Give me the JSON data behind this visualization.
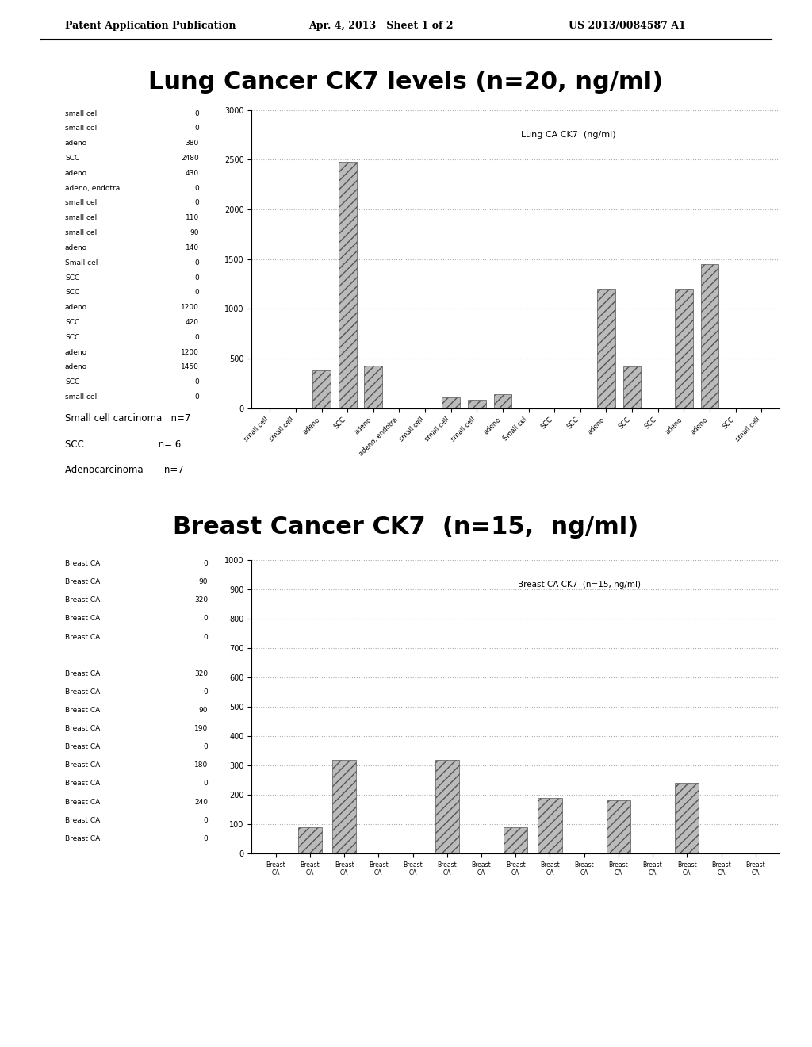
{
  "header_left": "Patent Application Publication",
  "header_mid": "Apr. 4, 2013   Sheet 1 of 2",
  "header_right": "US 2013/0084587 A1",
  "lung_title": "Lung Cancer CK7 levels (n=20, ng/ml)",
  "lung_chart_title": "Lung CA CK7  (ng/ml)",
  "lung_labels": [
    "small cell",
    "small cell",
    "adeno",
    "SCC",
    "adeno",
    "adeno, endotra",
    "small cell",
    "small cell",
    "small cell",
    "adeno",
    "Small cel",
    "SCC",
    "SCC",
    "adeno",
    "SCC",
    "SCC",
    "adeno",
    "adeno",
    "SCC",
    "small cell"
  ],
  "lung_values": [
    0,
    0,
    380,
    2480,
    430,
    0,
    0,
    110,
    90,
    140,
    0,
    0,
    0,
    1200,
    420,
    0,
    1200,
    1450,
    0,
    0
  ],
  "lung_ylim": [
    0,
    3000
  ],
  "lung_yticks": [
    0,
    500,
    1000,
    1500,
    2000,
    2500,
    3000
  ],
  "lung_stats": [
    "Small cell carcinoma   n=7",
    "SCC                         n= 6",
    "Adenocarcinoma       n=7"
  ],
  "breast_title": "Breast Cancer CK7  (n=15,  ng/ml)",
  "breast_chart_title": "Breast CA CK7  (n=15, ng/ml)",
  "breast_labels": [
    "Breast CA",
    "Breast CA",
    "Breast CA",
    "Breast CA",
    "Breast CA",
    "Breast CA",
    "Breast CA",
    "Breast CA",
    "Breast CA",
    "Breast CA",
    "Breast CA",
    "Breast CA",
    "Breast CA",
    "Breast CA",
    "Breast CA"
  ],
  "breast_values": [
    0,
    90,
    320,
    0,
    0,
    320,
    0,
    90,
    190,
    0,
    180,
    0,
    240,
    0,
    0
  ],
  "breast_ylim": [
    0,
    1000
  ],
  "breast_yticks": [
    0,
    100,
    200,
    300,
    400,
    500,
    600,
    700,
    800,
    900,
    1000
  ],
  "breast_table_labels": [
    "Breast CA",
    "Breast CA",
    "Breast CA",
    "Breast CA",
    "Breast CA",
    "Breast CA",
    "Breast CA",
    "Breast CA",
    "Breast CA",
    "Breast CA",
    "Breast CA",
    "Breast CA",
    "Breast CA",
    "Breast CA",
    "Breast CA"
  ],
  "breast_table_values": [
    0,
    90,
    320,
    0,
    0,
    320,
    0,
    90,
    190,
    0,
    180,
    0,
    240,
    0,
    0
  ],
  "bg_color": "#ffffff",
  "bar_color": "#888888",
  "bar_hatch": "///",
  "grid_color": "#aaaaaa",
  "text_color": "#000000"
}
